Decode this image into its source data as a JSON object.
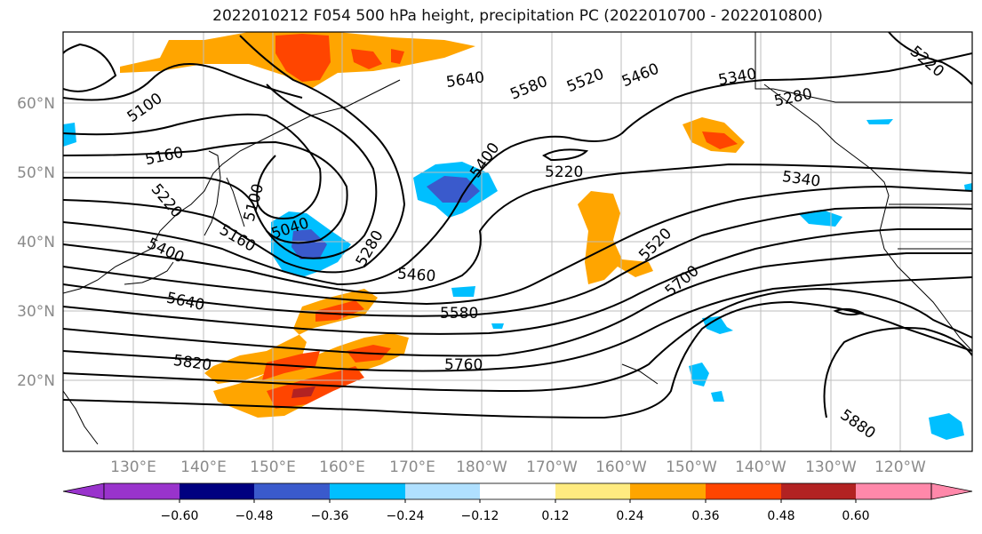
{
  "title": "2022010212 F054 500 hPa height, precipitation PC (2022010700 - 2022010800)",
  "lat_labels": [
    "60°N",
    "50°N",
    "40°N",
    "30°N",
    "20°N"
  ],
  "lon_labels": [
    "130°E",
    "140°E",
    "150°E",
    "160°E",
    "170°E",
    "180°W",
    "170°W",
    "160°W",
    "150°W",
    "140°W",
    "130°W",
    "120°W"
  ],
  "contour_labels": [
    "5100",
    "5160",
    "5220",
    "5100",
    "5160",
    "5040",
    "5400",
    "5640",
    "5820",
    "5280",
    "5460",
    "5580",
    "5760",
    "5400",
    "5640",
    "5580",
    "5520",
    "5460",
    "5340",
    "5280",
    "5220",
    "5340",
    "5520",
    "5700",
    "5880",
    "5220"
  ],
  "colorbar": {
    "ticks": [
      "−0.60",
      "−0.48",
      "−0.36",
      "−0.24",
      "−0.12",
      "0.12",
      "0.24",
      "0.36",
      "0.48",
      "0.60"
    ],
    "colors": [
      "#9933cc",
      "#000080",
      "#3a5acc",
      "#00bfff",
      "#b0e0ff",
      "#ffffff",
      "#ffeb80",
      "#ffa500",
      "#ff4500",
      "#b22222",
      "#ff88aa"
    ]
  }
}
